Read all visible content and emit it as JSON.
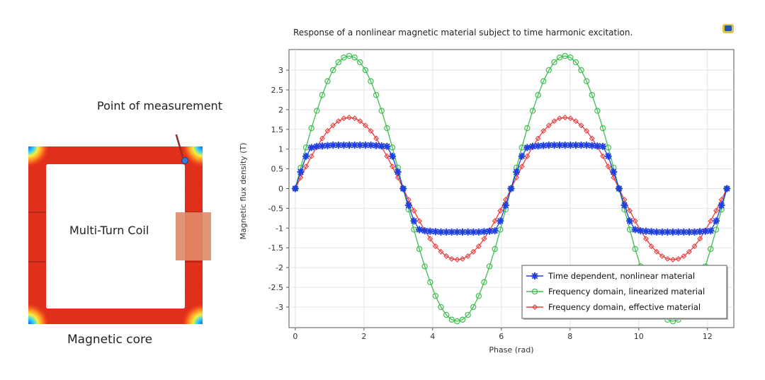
{
  "figure": {
    "point_label": "Point of measurement",
    "coil_label": "Multi-Turn Coil",
    "core_label": "Magnetic core"
  },
  "colors": {
    "core_red": "#e3301c",
    "coil_orange": "#e08a68",
    "series_blue": "#1f3fe0",
    "series_green": "#3dbf4e",
    "series_red": "#ee3b3b",
    "arrow": "#9b2b2b"
  },
  "chart_data": {
    "type": "line",
    "title": "Response of a nonlinear magnetic material subject to time harmonic excitation.",
    "xlabel": "Phase (rad)",
    "ylabel": "Magnetic flux density (T)",
    "xlim": [
      0,
      12.566
    ],
    "ylim": [
      -3.4,
      3.4
    ],
    "xticks": [
      "0",
      "2",
      "4",
      "6",
      "8",
      "10",
      "12"
    ],
    "yticks": [
      "3",
      "2.5",
      "2",
      "1.5",
      "1",
      "0.5",
      "0",
      "-0.5",
      "-1",
      "-1.5",
      "-2",
      "-2.5",
      "-3"
    ],
    "grid": true,
    "legend_position": "bottom-right",
    "series": [
      {
        "name": "Time dependent, nonlinear material",
        "marker": "asterisk",
        "color": "#1f3fe0",
        "x": [
          0,
          0.157,
          0.314,
          0.471,
          0.628,
          0.785,
          0.942,
          1.1,
          1.257,
          1.414,
          1.571,
          1.728,
          1.885,
          2.042,
          2.199,
          2.356,
          2.513,
          2.67,
          2.827,
          2.985,
          3.142,
          3.299,
          3.456,
          3.613,
          3.77,
          3.927,
          4.084,
          4.241,
          4.398,
          4.555,
          4.712,
          4.869,
          5.027,
          5.184,
          5.341,
          5.498,
          5.655,
          5.812,
          5.969,
          6.126,
          6.283,
          6.44,
          6.597,
          6.754,
          6.912,
          7.069,
          7.226,
          7.383,
          7.54,
          7.697,
          7.854,
          8.011,
          8.168,
          8.325,
          8.482,
          8.639,
          8.796,
          8.954,
          9.111,
          9.268,
          9.425,
          9.582,
          9.739,
          9.896,
          10.053,
          10.21,
          10.367,
          10.524,
          10.681,
          10.838,
          10.996,
          11.153,
          11.31,
          11.467,
          11.624,
          11.781,
          11.938,
          12.095,
          12.252,
          12.409,
          12.566
        ],
        "y": [
          0,
          0.42,
          0.82,
          1.04,
          1.07,
          1.08,
          1.09,
          1.1,
          1.1,
          1.1,
          1.1,
          1.1,
          1.1,
          1.1,
          1.1,
          1.09,
          1.08,
          1.07,
          0.82,
          0.42,
          0,
          -0.42,
          -0.82,
          -1.04,
          -1.07,
          -1.08,
          -1.09,
          -1.1,
          -1.1,
          -1.1,
          -1.1,
          -1.1,
          -1.1,
          -1.1,
          -1.1,
          -1.09,
          -1.08,
          -1.07,
          -0.82,
          -0.42,
          0,
          0.42,
          0.82,
          1.04,
          1.07,
          1.08,
          1.09,
          1.1,
          1.1,
          1.1,
          1.1,
          1.1,
          1.1,
          1.1,
          1.1,
          1.09,
          1.08,
          1.07,
          0.82,
          0.42,
          0,
          -0.42,
          -0.82,
          -1.04,
          -1.07,
          -1.08,
          -1.09,
          -1.1,
          -1.1,
          -1.1,
          -1.1,
          -1.1,
          -1.1,
          -1.1,
          -1.1,
          -1.09,
          -1.08,
          -1.07,
          -0.82,
          -0.42,
          0
        ]
      },
      {
        "name": "Frequency domain, linearized material",
        "marker": "circle",
        "color": "#3dbf4e",
        "x": [
          0,
          0.157,
          0.314,
          0.471,
          0.628,
          0.785,
          0.942,
          1.1,
          1.257,
          1.414,
          1.571,
          1.728,
          1.885,
          2.042,
          2.199,
          2.356,
          2.513,
          2.67,
          2.827,
          2.985,
          3.142,
          3.299,
          3.456,
          3.613,
          3.77,
          3.927,
          4.084,
          4.241,
          4.398,
          4.555,
          4.712,
          4.869,
          5.027,
          5.184,
          5.341,
          5.498,
          5.655,
          5.812,
          5.969,
          6.126,
          6.283,
          6.44,
          6.597,
          6.754,
          6.912,
          7.069,
          7.226,
          7.383,
          7.54,
          7.697,
          7.854,
          8.011,
          8.168,
          8.325,
          8.482,
          8.639,
          8.796,
          8.954,
          9.111,
          9.268,
          9.425,
          9.582,
          9.739,
          9.896,
          10.053,
          10.21,
          10.367,
          10.524,
          10.681,
          10.838,
          10.996,
          11.153,
          11.31,
          11.467,
          11.624,
          11.781,
          11.938,
          12.095,
          12.252,
          12.409,
          12.566
        ],
        "y": [
          0,
          0.53,
          1.04,
          1.53,
          1.97,
          2.37,
          2.72,
          3.0,
          3.2,
          3.32,
          3.36,
          3.32,
          3.2,
          3.0,
          2.72,
          2.37,
          1.97,
          1.53,
          1.04,
          0.53,
          0,
          -0.53,
          -1.04,
          -1.53,
          -1.97,
          -2.37,
          -2.72,
          -3.0,
          -3.2,
          -3.32,
          -3.36,
          -3.32,
          -3.2,
          -3.0,
          -2.72,
          -2.37,
          -1.97,
          -1.53,
          -1.04,
          -0.53,
          0,
          0.53,
          1.04,
          1.53,
          1.97,
          2.37,
          2.72,
          3.0,
          3.2,
          3.32,
          3.36,
          3.32,
          3.2,
          3.0,
          2.72,
          2.37,
          1.97,
          1.53,
          1.04,
          0.53,
          0,
          -0.53,
          -1.04,
          -1.53,
          -1.97,
          -2.37,
          -2.72,
          -3.0,
          -3.2,
          -3.32,
          -3.36,
          -3.32,
          -3.2,
          -3.0,
          -2.72,
          -2.37,
          -1.97,
          -1.53,
          -1.04,
          -0.53,
          0
        ]
      },
      {
        "name": "Frequency domain, effective material",
        "marker": "diamond",
        "color": "#ee3b3b",
        "x": [
          0,
          0.157,
          0.314,
          0.471,
          0.628,
          0.785,
          0.942,
          1.1,
          1.257,
          1.414,
          1.571,
          1.728,
          1.885,
          2.042,
          2.199,
          2.356,
          2.513,
          2.67,
          2.827,
          2.985,
          3.142,
          3.299,
          3.456,
          3.613,
          3.77,
          3.927,
          4.084,
          4.241,
          4.398,
          4.555,
          4.712,
          4.869,
          5.027,
          5.184,
          5.341,
          5.498,
          5.655,
          5.812,
          5.969,
          6.126,
          6.283,
          6.44,
          6.597,
          6.754,
          6.912,
          7.069,
          7.226,
          7.383,
          7.54,
          7.697,
          7.854,
          8.011,
          8.168,
          8.325,
          8.482,
          8.639,
          8.796,
          8.954,
          9.111,
          9.268,
          9.425,
          9.582,
          9.739,
          9.896,
          10.053,
          10.21,
          10.367,
          10.524,
          10.681,
          10.838,
          10.996,
          11.153,
          11.31,
          11.467,
          11.624,
          11.781,
          11.938,
          12.095,
          12.252,
          12.409,
          12.566
        ],
        "y": [
          0,
          0.28,
          0.56,
          0.82,
          1.06,
          1.27,
          1.46,
          1.6,
          1.71,
          1.78,
          1.8,
          1.78,
          1.71,
          1.6,
          1.46,
          1.27,
          1.06,
          0.82,
          0.56,
          0.28,
          0,
          -0.28,
          -0.56,
          -0.82,
          -1.06,
          -1.27,
          -1.46,
          -1.6,
          -1.71,
          -1.78,
          -1.8,
          -1.78,
          -1.71,
          -1.6,
          -1.46,
          -1.27,
          -1.06,
          -0.82,
          -0.56,
          -0.28,
          0,
          0.28,
          0.56,
          0.82,
          1.06,
          1.27,
          1.46,
          1.6,
          1.71,
          1.78,
          1.8,
          1.78,
          1.71,
          1.6,
          1.46,
          1.27,
          1.06,
          0.82,
          0.56,
          0.28,
          0,
          -0.28,
          -0.56,
          -0.82,
          -1.06,
          -1.27,
          -1.46,
          -1.6,
          -1.71,
          -1.78,
          -1.8,
          -1.78,
          -1.71,
          -1.6,
          -1.46,
          -1.27,
          -1.06,
          -0.82,
          -0.56,
          -0.28,
          0
        ]
      }
    ]
  }
}
